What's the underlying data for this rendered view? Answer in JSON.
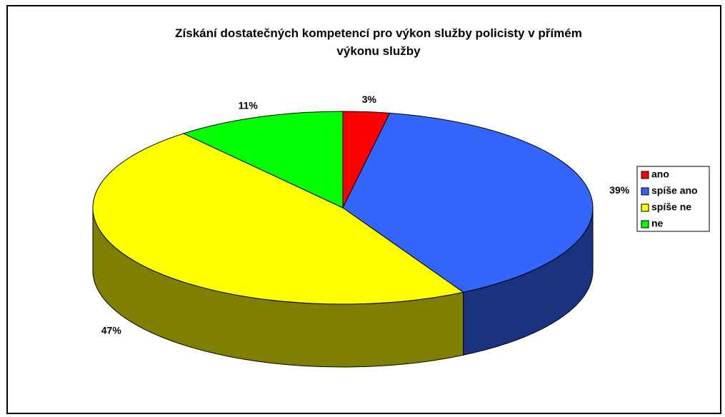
{
  "chart_data": {
    "type": "pie3d",
    "title": "Získání dostatečných kompetencí pro výkon služby policisty v přímém výkonu služby",
    "categories": [
      "ano",
      "spíše ano",
      "spíše ne",
      "ne"
    ],
    "values": [
      3,
      39,
      47,
      11
    ],
    "value_labels": [
      "3%",
      "39%",
      "47%",
      "11%"
    ],
    "colors": [
      "#ff0000",
      "#3366ff",
      "#ffff00",
      "#00ff00"
    ],
    "legend": "right"
  }
}
